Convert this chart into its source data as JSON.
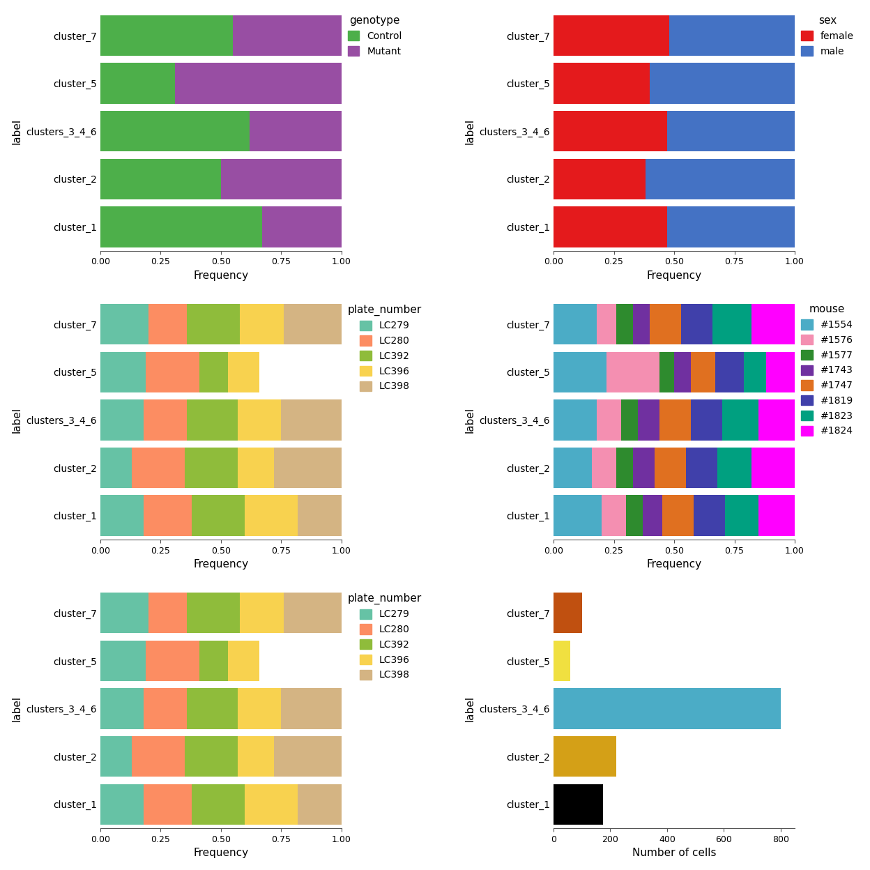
{
  "clusters": [
    "cluster_1",
    "cluster_2",
    "clusters_3_4_6",
    "cluster_5",
    "cluster_7"
  ],
  "genotype": {
    "Control": [
      0.67,
      0.5,
      0.62,
      0.31,
      0.55
    ],
    "Mutant": [
      0.33,
      0.5,
      0.38,
      0.69,
      0.45
    ],
    "colors": {
      "Control": "#4daf4a",
      "Mutant": "#984ea3"
    }
  },
  "sex": {
    "female": [
      0.47,
      0.38,
      0.47,
      0.4,
      0.48
    ],
    "male": [
      0.53,
      0.62,
      0.53,
      0.6,
      0.52
    ],
    "colors": {
      "female": "#e41a1c",
      "male": "#4472c4"
    }
  },
  "plate_number": {
    "LC279": [
      0.18,
      0.13,
      0.18,
      0.19,
      0.2
    ],
    "LC280": [
      0.2,
      0.22,
      0.18,
      0.22,
      0.16
    ],
    "LC392": [
      0.22,
      0.22,
      0.21,
      0.12,
      0.22
    ],
    "LC396": [
      0.22,
      0.15,
      0.18,
      0.13,
      0.18
    ],
    "LC398": [
      0.18,
      0.28,
      0.25,
      0.0,
      0.24
    ],
    "colors": {
      "LC279": "#66c2a5",
      "LC280": "#fc8d62",
      "LC392": "#8fbc3b",
      "LC396": "#f8d24f",
      "LC398": "#d4b483"
    }
  },
  "mouse": {
    "#1554": [
      0.2,
      0.16,
      0.18,
      0.22,
      0.18
    ],
    "#1576": [
      0.1,
      0.1,
      0.1,
      0.22,
      0.08
    ],
    "#1577": [
      0.07,
      0.07,
      0.07,
      0.06,
      0.07
    ],
    "#1743": [
      0.08,
      0.09,
      0.09,
      0.07,
      0.07
    ],
    "#1747": [
      0.13,
      0.13,
      0.13,
      0.1,
      0.13
    ],
    "#1819": [
      0.13,
      0.13,
      0.13,
      0.12,
      0.13
    ],
    "#1823": [
      0.14,
      0.14,
      0.15,
      0.09,
      0.16
    ],
    "#1824": [
      0.15,
      0.18,
      0.15,
      0.12,
      0.18
    ],
    "colors": {
      "#1554": "#4bacc6",
      "#1576": "#f48fb1",
      "#1577": "#2e8b2e",
      "#1743": "#7030a0",
      "#1747": "#e07020",
      "#1819": "#4040aa",
      "#1823": "#00a080",
      "#1824": "#ff00ff"
    }
  },
  "cell_counts": {
    "cluster_1": 175,
    "cluster_2": 220,
    "clusters_3_4_6": 800,
    "cluster_5": 60,
    "cluster_7": 100
  },
  "cell_count_colors": {
    "cluster_1": "#000000",
    "cluster_2": "#d4a017",
    "clusters_3_4_6": "#4bacc6",
    "cluster_5": "#f0e040",
    "cluster_7": "#c05010"
  },
  "bg_color": "#ffffff"
}
